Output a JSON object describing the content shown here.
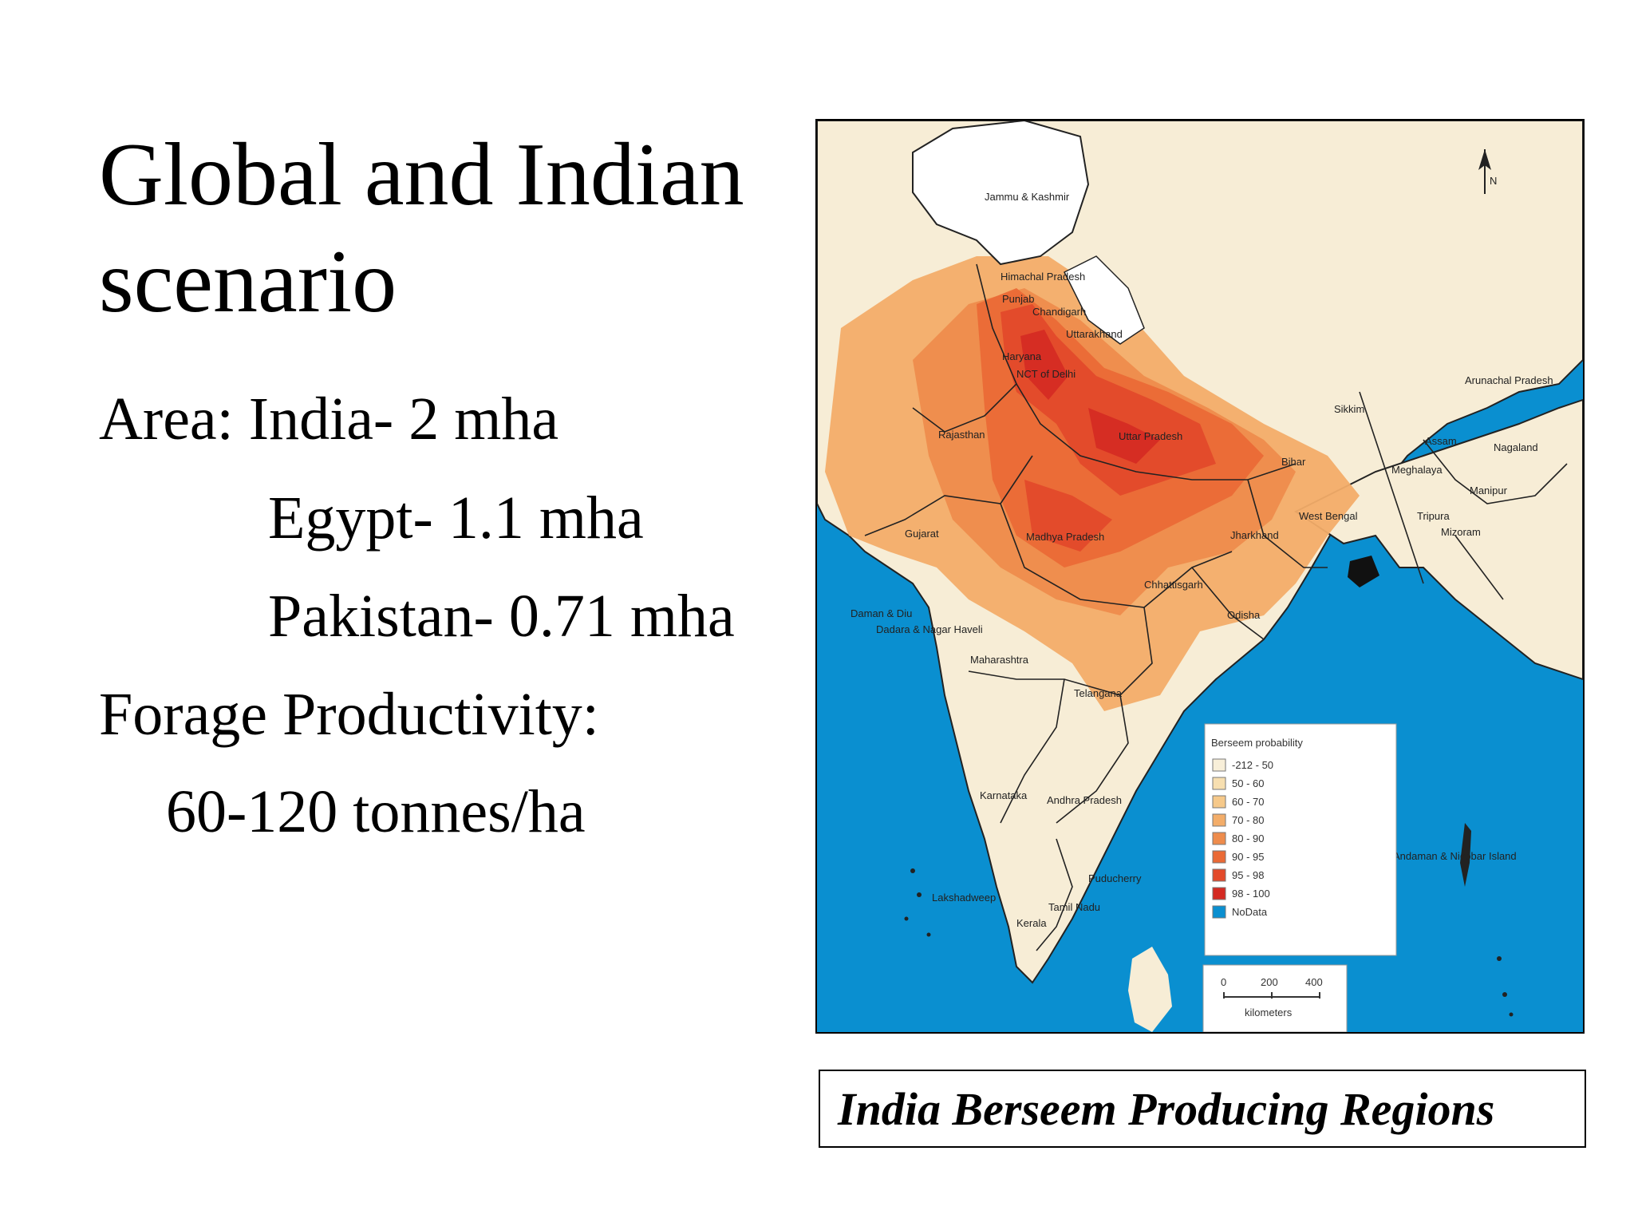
{
  "slide": {
    "title": "Global and Indian scenario",
    "area_label": "Area: India- 2 mha",
    "egypt": "Egypt- 1.1 mha",
    "pakistan": "Pakistan- 0.71 mha",
    "forage_label": "Forage Productivity:",
    "forage_value": "60-120 tonnes/ha"
  },
  "map": {
    "caption": "India Berseem Producing Regions",
    "north_arrow": "N",
    "legend_title": "Berseem probability",
    "legend": [
      {
        "label": "-212 - 50",
        "color": "#f8efd9"
      },
      {
        "label": "50 - 60",
        "color": "#f7dfb0"
      },
      {
        "label": "60 - 70",
        "color": "#f6c98a"
      },
      {
        "label": "70 - 80",
        "color": "#f3ad69"
      },
      {
        "label": "80 - 90",
        "color": "#ee8c4c"
      },
      {
        "label": "90 - 95",
        "color": "#ea6a36"
      },
      {
        "label": "95 - 98",
        "color": "#e34a2a"
      },
      {
        "label": "98 - 100",
        "color": "#d42a22"
      },
      {
        "label": "NoData",
        "color": "#0a8fd0"
      }
    ],
    "scale": {
      "ticks": [
        "0",
        "200",
        "400"
      ],
      "unit": "kilometers"
    },
    "regions": {
      "jk": "Jammu & Kashmir",
      "hp": "Himachal Pradesh",
      "punjab": "Punjab",
      "chandigarh": "Chandigarh",
      "uk": "Uttarakhand",
      "haryana": "Haryana",
      "delhi": "NCT of Delhi",
      "rajasthan": "Rajasthan",
      "up": "Uttar Pradesh",
      "bihar": "Bihar",
      "sikkim": "Sikkim",
      "arunachal": "Arunachal Pradesh",
      "assam": "Assam",
      "nagaland": "Nagaland",
      "meghalaya": "Meghalaya",
      "manipur": "Manipur",
      "tripura": "Tripura",
      "mizoram": "Mizoram",
      "wb": "West Bengal",
      "jharkhand": "Jharkhand",
      "gujarat": "Gujarat",
      "mp": "Madhya Pradesh",
      "chhattisgarh": "Chhattisgarh",
      "odisha": "Odisha",
      "daman": "Daman & Diu",
      "dnh": "Dadara & Nagar Haveli",
      "maharashtra": "Maharashtra",
      "telangana": "Telangana",
      "karnataka": "Karnataka",
      "ap": "Andhra Pradesh",
      "puducherry": "Puducherry",
      "lakshadweep": "Lakshadweep",
      "tn": "Tamil Nadu",
      "kerala": "Kerala",
      "andaman": "Andaman & Nicobar Island"
    }
  }
}
